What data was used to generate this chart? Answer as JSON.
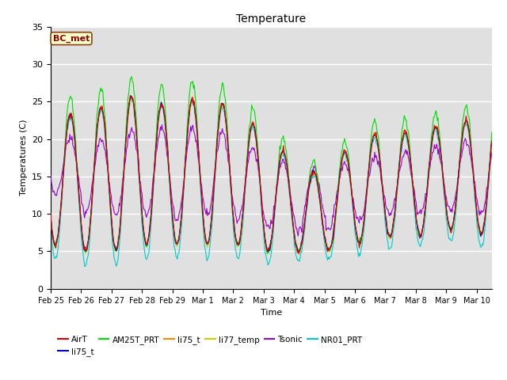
{
  "title": "Temperature",
  "xlabel": "Time",
  "ylabel": "Temperatures (C)",
  "ylim": [
    0,
    35
  ],
  "end_day": 14.5,
  "annotation": "BC_met",
  "background_color": "#e0e0e0",
  "grid_color": "white",
  "legend_labels": [
    "AirT",
    "li75_t",
    "AM25T_PRT",
    "li75_t",
    "li77_temp",
    "Tsonic",
    "NR01_PRT"
  ],
  "legend_colors": [
    "#dd0000",
    "#0000cc",
    "#00dd00",
    "#ff8800",
    "#cccc00",
    "#9900cc",
    "#00cccc"
  ],
  "yticks": [
    0,
    5,
    10,
    15,
    20,
    25,
    30,
    35
  ],
  "tick_positions": [
    0,
    1,
    2,
    3,
    4,
    5,
    6,
    7,
    8,
    9,
    10,
    11,
    12,
    13,
    14
  ],
  "tick_labels": [
    "Feb 25",
    "Feb 26",
    "Feb 27",
    "Feb 28",
    "Feb 29",
    "Mar 1",
    "Mar 2",
    "Mar 3",
    "Mar 4",
    "Mar 5",
    "Mar 6",
    "Mar 7",
    "Mar 8",
    "Mar 9",
    "Mar 10"
  ]
}
